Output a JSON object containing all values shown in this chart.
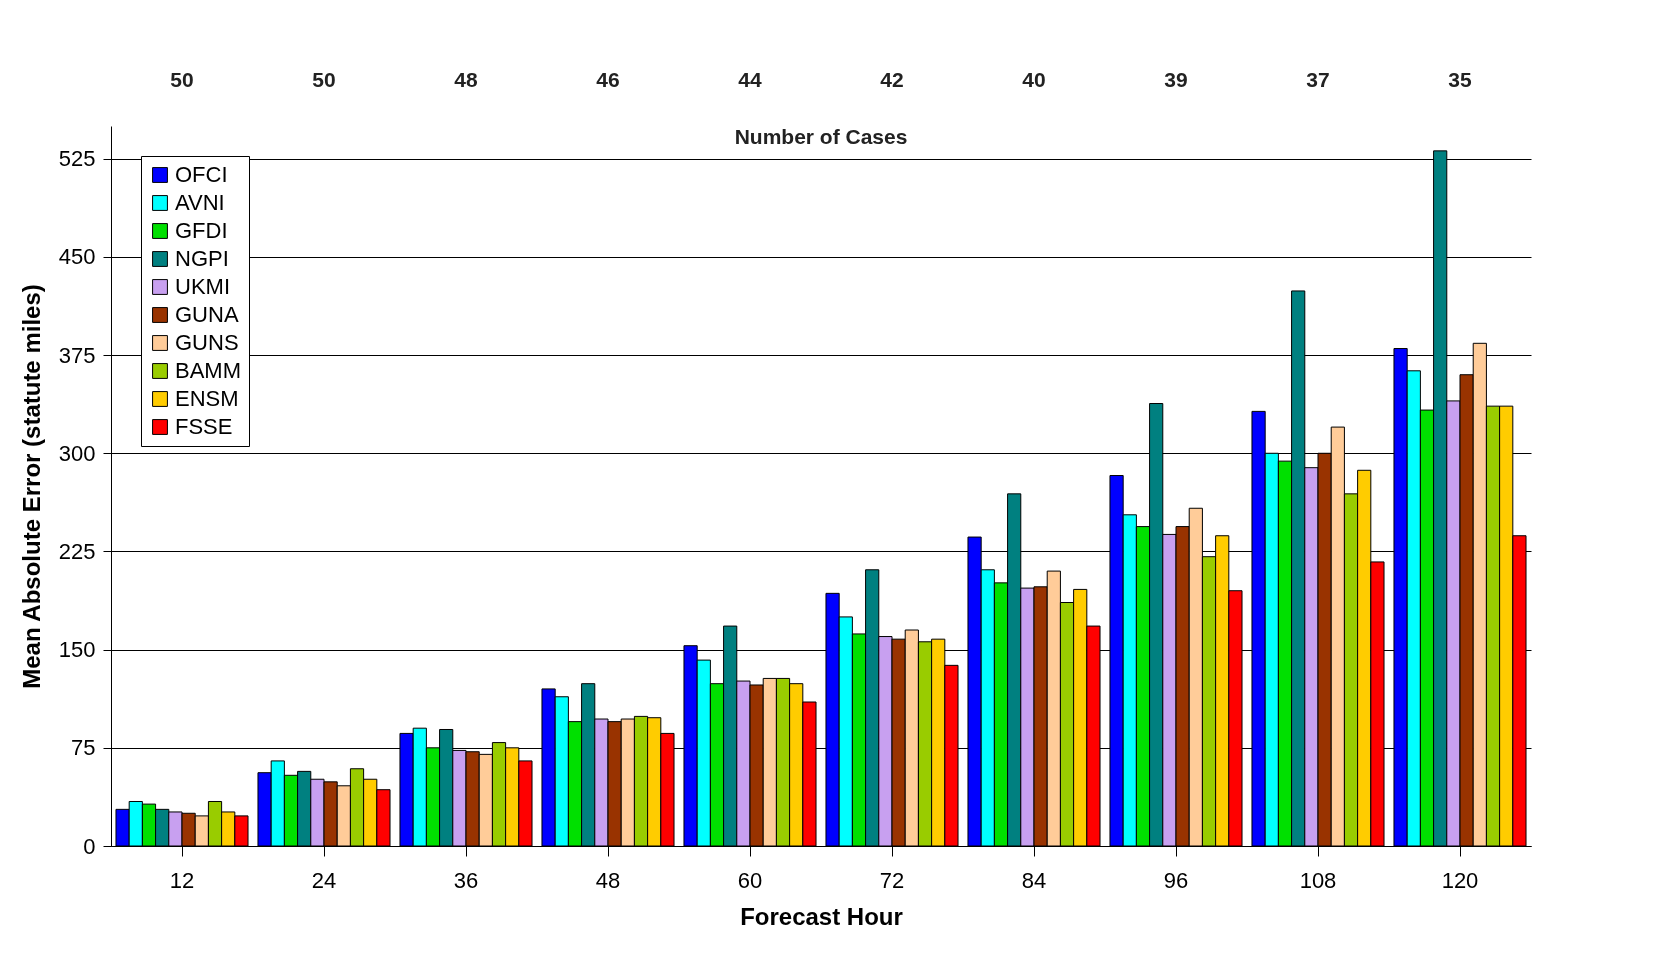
{
  "chart_data": {
    "type": "bar",
    "xlabel": "Forecast Hour",
    "ylabel": "Mean Absolute Error (statute miles)",
    "categories": [
      "12",
      "24",
      "36",
      "48",
      "60",
      "72",
      "84",
      "96",
      "108",
      "120"
    ],
    "series": [
      {
        "name": "OFCI",
        "color": "#0000ff",
        "values": [
          28,
          56,
          86,
          120,
          153,
          193,
          236,
          283,
          332,
          380
        ]
      },
      {
        "name": "AVNI",
        "color": "#00ffff",
        "values": [
          34,
          65,
          90,
          114,
          142,
          175,
          211,
          253,
          300,
          363
        ]
      },
      {
        "name": "GFDI",
        "color": "#00e000",
        "values": [
          32,
          54,
          75,
          95,
          124,
          162,
          201,
          244,
          294,
          333
        ]
      },
      {
        "name": "NGPI",
        "color": "#008080",
        "values": [
          28,
          57,
          89,
          124,
          168,
          211,
          269,
          338,
          424,
          531
        ]
      },
      {
        "name": "UKMI",
        "color": "#c8a0f0",
        "values": [
          26,
          51,
          73,
          97,
          126,
          160,
          197,
          238,
          289,
          340
        ]
      },
      {
        "name": "GUNA",
        "color": "#993300",
        "values": [
          25,
          49,
          72,
          95,
          123,
          158,
          198,
          244,
          300,
          360
        ]
      },
      {
        "name": "GUNS",
        "color": "#ffcc99",
        "values": [
          23,
          46,
          70,
          97,
          128,
          165,
          210,
          258,
          320,
          384
        ]
      },
      {
        "name": "BAMM",
        "color": "#99cc00",
        "values": [
          34,
          59,
          79,
          99,
          128,
          156,
          186,
          221,
          269,
          336
        ]
      },
      {
        "name": "ENSM",
        "color": "#ffcc00",
        "values": [
          26,
          51,
          75,
          98,
          124,
          158,
          196,
          237,
          287,
          336
        ]
      },
      {
        "name": "FSSE",
        "color": "#ff0000",
        "values": [
          23,
          43,
          65,
          86,
          110,
          138,
          168,
          195,
          217,
          237
        ]
      }
    ],
    "ylim": [
      0,
      550
    ],
    "yticks": [
      0,
      75,
      150,
      225,
      300,
      375,
      450,
      525
    ],
    "grid": "y",
    "legend": "top left",
    "annotations": [
      "Number of Cases",
      "50",
      "50",
      "48",
      "46",
      "44",
      "42",
      "40",
      "39",
      "37",
      "35"
    ]
  }
}
